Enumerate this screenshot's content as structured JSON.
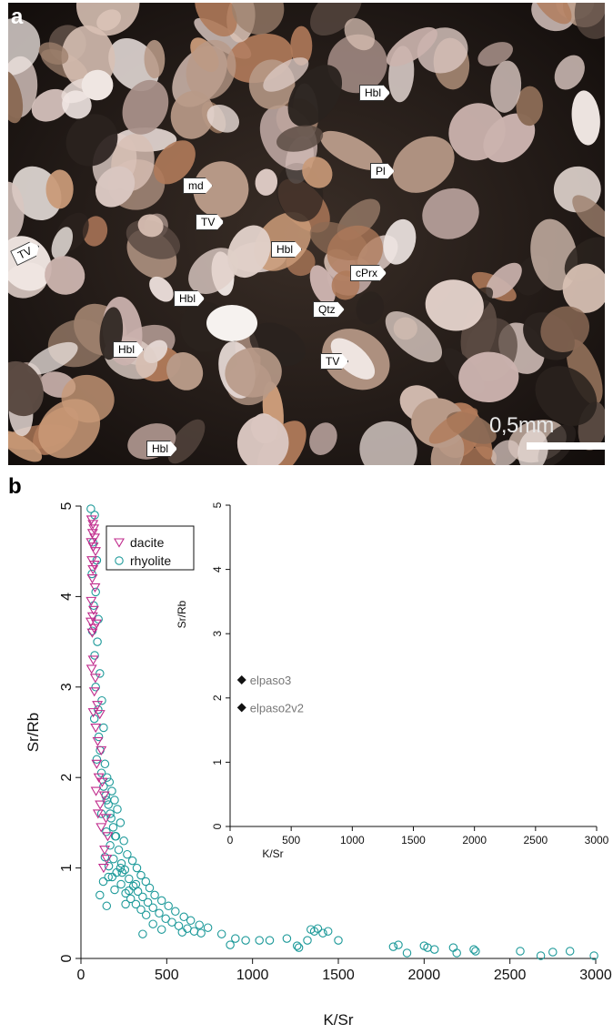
{
  "panel_a": {
    "letter": "a",
    "scale_label": "0,5mm",
    "labels": [
      {
        "id": "hbl1",
        "text": "Hbl"
      },
      {
        "id": "pl",
        "text": "Pl"
      },
      {
        "id": "md",
        "text": "md"
      },
      {
        "id": "tv1",
        "text": "TV"
      },
      {
        "id": "tv2",
        "text": "TV"
      },
      {
        "id": "hbl2",
        "text": "Hbl"
      },
      {
        "id": "cprx",
        "text": "cPrx"
      },
      {
        "id": "hbl3",
        "text": "Hbl"
      },
      {
        "id": "qtz",
        "text": "Qtz"
      },
      {
        "id": "hbl4",
        "text": "Hbl"
      },
      {
        "id": "tv3",
        "text": "TV"
      },
      {
        "id": "hbl5",
        "text": "Hbl"
      }
    ]
  },
  "panel_b": {
    "letter": "b"
  },
  "chart_data": [
    {
      "type": "scatter",
      "xlabel": "K/Sr",
      "ylabel": "Sr/Rb",
      "xlim": [
        0,
        3000
      ],
      "ylim": [
        0,
        5
      ],
      "xticks": [
        "0",
        "500",
        "1000",
        "1500",
        "2000",
        "2500",
        "3000"
      ],
      "yticks": [
        "0",
        "1",
        "2",
        "3",
        "4",
        "5"
      ],
      "grid": false,
      "legend_position": "top-left",
      "colors": {
        "dacite": "#c02b8c",
        "rhyolite": "#1e9a9a"
      },
      "series": [
        {
          "name": "dacite",
          "marker": "triangle-down",
          "points": [
            [
              62,
              4.85
            ],
            [
              70,
              4.8
            ],
            [
              75,
              4.75
            ],
            [
              68,
              4.7
            ],
            [
              80,
              4.65
            ],
            [
              60,
              4.6
            ],
            [
              72,
              4.55
            ],
            [
              85,
              4.5
            ],
            [
              64,
              4.4
            ],
            [
              78,
              4.35
            ],
            [
              70,
              4.3
            ],
            [
              66,
              4.2
            ],
            [
              82,
              4.1
            ],
            [
              60,
              3.95
            ],
            [
              74,
              3.85
            ],
            [
              68,
              3.78
            ],
            [
              58,
              3.72
            ],
            [
              90,
              3.7
            ],
            [
              76,
              3.65
            ],
            [
              66,
              3.6
            ],
            [
              72,
              3.3
            ],
            [
              62,
              3.2
            ],
            [
              84,
              3.1
            ],
            [
              78,
              2.95
            ],
            [
              96,
              2.8
            ],
            [
              72,
              2.72
            ],
            [
              110,
              2.7
            ],
            [
              86,
              2.55
            ],
            [
              98,
              2.4
            ],
            [
              118,
              2.3
            ],
            [
              92,
              2.15
            ],
            [
              104,
              2.0
            ],
            [
              124,
              1.95
            ],
            [
              88,
              1.85
            ],
            [
              136,
              1.8
            ],
            [
              112,
              1.7
            ],
            [
              100,
              1.6
            ],
            [
              146,
              1.55
            ],
            [
              118,
              1.45
            ],
            [
              156,
              1.35
            ],
            [
              138,
              1.2
            ],
            [
              150,
              1.1
            ],
            [
              132,
              1.0
            ]
          ]
        },
        {
          "name": "rhyolite",
          "marker": "circle",
          "points": [
            [
              58,
              4.97
            ],
            [
              80,
              4.9
            ],
            [
              70,
              4.6
            ],
            [
              92,
              4.4
            ],
            [
              64,
              4.25
            ],
            [
              86,
              4.05
            ],
            [
              74,
              3.9
            ],
            [
              102,
              3.75
            ],
            [
              66,
              3.62
            ],
            [
              96,
              3.5
            ],
            [
              80,
              3.35
            ],
            [
              110,
              3.15
            ],
            [
              86,
              3.0
            ],
            [
              122,
              2.85
            ],
            [
              100,
              2.75
            ],
            [
              78,
              2.65
            ],
            [
              132,
              2.55
            ],
            [
              104,
              2.45
            ],
            [
              112,
              2.3
            ],
            [
              92,
              2.2
            ],
            [
              140,
              2.15
            ],
            [
              120,
              2.05
            ],
            [
              152,
              2.0
            ],
            [
              166,
              1.95
            ],
            [
              132,
              1.9
            ],
            [
              180,
              1.85
            ],
            [
              144,
              1.8
            ],
            [
              196,
              1.75
            ],
            [
              160,
              1.7
            ],
            [
              212,
              1.65
            ],
            [
              120,
              1.6
            ],
            [
              176,
              1.55
            ],
            [
              230,
              1.5
            ],
            [
              188,
              1.45
            ],
            [
              148,
              1.4
            ],
            [
              204,
              1.35
            ],
            [
              250,
              1.3
            ],
            [
              170,
              1.25
            ],
            [
              220,
              1.2
            ],
            [
              270,
              1.15
            ],
            [
              140,
              1.12
            ],
            [
              190,
              1.1
            ],
            [
              300,
              1.08
            ],
            [
              236,
              1.05
            ],
            [
              162,
              1.02
            ],
            [
              326,
              1.0
            ],
            [
              256,
              0.98
            ],
            [
              208,
              0.95
            ],
            [
              350,
              0.92
            ],
            [
              182,
              0.9
            ],
            [
              280,
              0.88
            ],
            [
              378,
              0.85
            ],
            [
              234,
              0.82
            ],
            [
              306,
              0.8
            ],
            [
              400,
              0.78
            ],
            [
              196,
              0.76
            ],
            [
              332,
              0.74
            ],
            [
              260,
              0.72
            ],
            [
              430,
              0.7
            ],
            [
              360,
              0.68
            ],
            [
              290,
              0.66
            ],
            [
              470,
              0.64
            ],
            [
              390,
              0.62
            ],
            [
              320,
              0.6
            ],
            [
              510,
              0.58
            ],
            [
              420,
              0.56
            ],
            [
              350,
              0.54
            ],
            [
              550,
              0.52
            ],
            [
              456,
              0.5
            ],
            [
              380,
              0.48
            ],
            [
              600,
              0.46
            ],
            [
              494,
              0.44
            ],
            [
              640,
              0.42
            ],
            [
              530,
              0.4
            ],
            [
              420,
              0.38
            ],
            [
              690,
              0.37
            ],
            [
              570,
              0.36
            ],
            [
              740,
              0.34
            ],
            [
              620,
              0.33
            ],
            [
              470,
              0.32
            ],
            [
              660,
              0.3
            ],
            [
              590,
              0.29
            ],
            [
              700,
              0.28
            ],
            [
              360,
              0.27
            ],
            [
              820,
              0.27
            ],
            [
              900,
              0.22
            ],
            [
              960,
              0.2
            ],
            [
              1040,
              0.2
            ],
            [
              1100,
              0.2
            ],
            [
              1200,
              0.22
            ],
            [
              1260,
              0.14
            ],
            [
              1340,
              0.32
            ],
            [
              1360,
              0.3
            ],
            [
              1380,
              0.33
            ],
            [
              1410,
              0.28
            ],
            [
              1440,
              0.3
            ],
            [
              1500,
              0.2
            ],
            [
              1320,
              0.2
            ],
            [
              1270,
              0.12
            ],
            [
              870,
              0.15
            ],
            [
              1820,
              0.13
            ],
            [
              1850,
              0.15
            ],
            [
              1900,
              0.06
            ],
            [
              2000,
              0.14
            ],
            [
              2020,
              0.12
            ],
            [
              2060,
              0.1
            ],
            [
              2170,
              0.12
            ],
            [
              2190,
              0.06
            ],
            [
              2290,
              0.1
            ],
            [
              2300,
              0.08
            ],
            [
              2560,
              0.08
            ],
            [
              2680,
              0.03
            ],
            [
              2750,
              0.07
            ],
            [
              2850,
              0.08
            ],
            [
              2990,
              0.03
            ],
            [
              160,
              0.9
            ],
            [
              240,
              0.95
            ],
            [
              280,
              0.75
            ],
            [
              320,
              0.82
            ],
            [
              200,
              1.35
            ],
            [
              170,
              1.6
            ],
            [
              150,
              1.75
            ],
            [
              230,
              1.0
            ],
            [
              260,
              0.6
            ],
            [
              150,
              0.58
            ],
            [
              110,
              0.7
            ],
            [
              130,
              0.85
            ]
          ]
        }
      ]
    },
    {
      "type": "scatter",
      "xlabel": "K/Sr",
      "ylabel": "Sr/Rb",
      "xlim": [
        0,
        3000
      ],
      "ylim": [
        0,
        5
      ],
      "xticks": [
        "0",
        "500",
        "1000",
        "1500",
        "2000",
        "2500",
        "3000"
      ],
      "yticks": [
        "0",
        "1",
        "2",
        "3",
        "4",
        "5"
      ],
      "grid": false,
      "series": [
        {
          "marker": "diamond",
          "color": "#111111",
          "points": [
            {
              "label": "elpaso3",
              "x": 95,
              "y": 2.28
            },
            {
              "label": "elpaso2v2",
              "x": 95,
              "y": 1.85
            }
          ]
        }
      ]
    }
  ]
}
